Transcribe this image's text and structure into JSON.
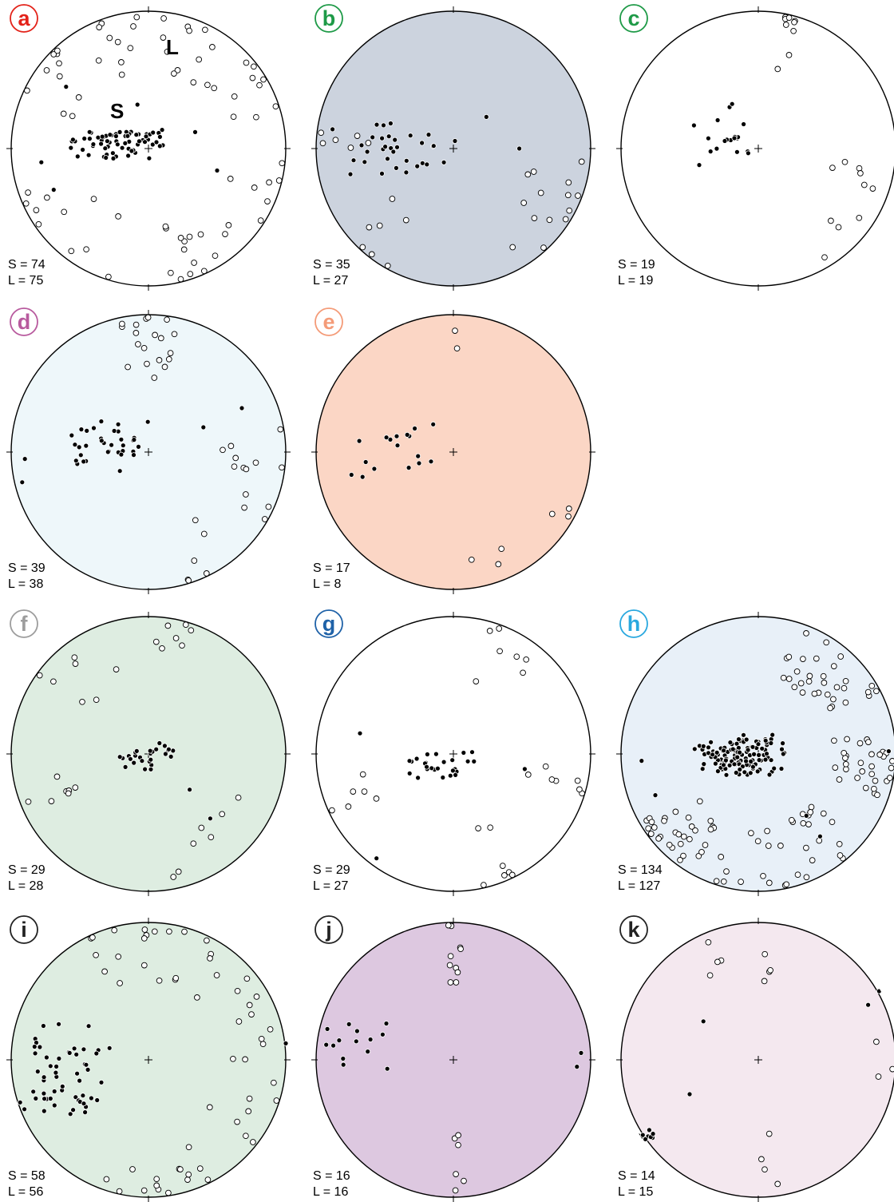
{
  "figure": {
    "panels": [
      {
        "id": "a",
        "label": "a",
        "label_color": "#e32219",
        "fill": "#ffffff",
        "count_S": "S = 74",
        "count_L": "L = 75",
        "annot_S": "S",
        "annot_L": "L",
        "poles_S_count": 74,
        "lineations_L_count": 75,
        "S_cluster": {
          "center": [
            -0.24,
            -0.02
          ],
          "spread": [
            0.4,
            0.14
          ],
          "tail": [
            [
              -0.78,
              0.1
            ],
            [
              -0.69,
              0.3
            ],
            [
              -0.6,
              -0.45
            ],
            [
              -0.08,
              -0.32
            ],
            [
              0.5,
              0.16
            ],
            [
              0.34,
              -0.12
            ]
          ]
        },
        "L_arcs": [
          [
            5,
            35
          ],
          [
            40,
            75
          ],
          [
            95,
            150
          ],
          [
            155,
            175
          ],
          [
            195,
            250
          ],
          [
            290,
            320
          ],
          [
            330,
            355
          ]
        ]
      },
      {
        "id": "b",
        "label": "b",
        "label_color": "#1e9a47",
        "fill": "#ccd3de",
        "count_S": "S = 35",
        "count_L": "L = 27",
        "poles_S_count": 35,
        "lineations_L_count": 27,
        "S_cluster": {
          "center": [
            -0.34,
            0.04
          ],
          "spread": [
            0.45,
            0.3
          ],
          "tail": [
            [
              -0.88,
              -0.14
            ],
            [
              0.24,
              -0.23
            ],
            [
              0.48,
              0.0
            ]
          ]
        },
        "L_arcs": [
          [
            95,
            150
          ],
          [
            105,
            130
          ],
          [
            200,
            240
          ],
          [
            270,
            280
          ]
        ]
      },
      {
        "id": "c",
        "label": "c",
        "label_color": "#1e9a47",
        "fill": "#ffffff",
        "count_S": "S = 19",
        "count_L": "L = 19",
        "poles_S_count": 19,
        "lineations_L_count": 19,
        "S_cluster": {
          "center": [
            -0.25,
            -0.12
          ],
          "spread": [
            0.25,
            0.28
          ],
          "tail": [
            [
              -0.43,
              0.12
            ]
          ]
        },
        "L_arcs": [
          [
            95,
            150
          ],
          [
            10,
            20
          ]
        ]
      },
      {
        "id": "d",
        "label": "d",
        "label_color": "#b85a9e",
        "fill": "#eef7fa",
        "count_S": "S = 39",
        "count_L": "L = 38",
        "poles_S_count": 39,
        "lineations_L_count": 38,
        "S_cluster": {
          "center": [
            -0.35,
            -0.05
          ],
          "spread": [
            0.42,
            0.25
          ],
          "tail": [
            [
              -0.9,
              0.05
            ],
            [
              -0.92,
              0.22
            ],
            [
              0.4,
              -0.18
            ],
            [
              0.68,
              -0.32
            ]
          ]
        },
        "L_arcs": [
          [
            110,
            165
          ],
          [
            345,
            360
          ],
          [
            0,
            15
          ],
          [
            80,
            100
          ]
        ]
      },
      {
        "id": "e",
        "label": "e",
        "label_color": "#f49b78",
        "fill": "#fbd6c5",
        "count_S": "S = 17",
        "count_L": "L = 8",
        "poles_S_count": 17,
        "lineations_L_count": 8,
        "S_cluster": {
          "center": [
            -0.4,
            -0.05
          ],
          "spread": [
            0.4,
            0.28
          ],
          "tail": []
        },
        "L_arcs": [
          [
            100,
            125
          ],
          [
            150,
            175
          ],
          [
            0,
            3
          ]
        ]
      },
      {
        "id": "f",
        "label": "f",
        "label_color": "#9d9d9d",
        "fill": "#deede1",
        "count_S": "S = 29",
        "count_L": "L = 28",
        "poles_S_count": 29,
        "lineations_L_count": 28,
        "S_cluster": {
          "center": [
            0.0,
            0.02
          ],
          "spread": [
            0.25,
            0.12
          ],
          "tail": [
            [
              0.3,
              0.26
            ],
            [
              0.45,
              0.47
            ]
          ]
        },
        "L_arcs": [
          [
            110,
            175
          ],
          [
            300,
            340
          ],
          [
            0,
            20
          ],
          [
            240,
            260
          ]
        ]
      },
      {
        "id": "g",
        "label": "g",
        "label_color": "#1f62a8",
        "fill": "#ffffff",
        "count_S": "S = 29",
        "count_L": "L = 27",
        "poles_S_count": 29,
        "lineations_L_count": 27,
        "S_cluster": {
          "center": [
            -0.1,
            0.08
          ],
          "spread": [
            0.28,
            0.12
          ],
          "tail": [
            [
              -0.68,
              -0.15
            ],
            [
              0.52,
              0.11
            ],
            [
              -0.56,
              0.76
            ]
          ]
        },
        "L_arcs": [
          [
            5,
            45
          ],
          [
            95,
            110
          ],
          [
            150,
            170
          ],
          [
            230,
            260
          ]
        ]
      },
      {
        "id": "h",
        "label": "h",
        "label_color": "#29a8df",
        "fill": "#e8f0f8",
        "count_S": "S = 134",
        "count_L": "L = 127",
        "poles_S_count": 134,
        "lineations_L_count": 127,
        "S_cluster": {
          "center": [
            -0.12,
            0.02
          ],
          "spread": [
            0.38,
            0.18
          ],
          "tail": [
            [
              -0.75,
              0.3
            ],
            [
              -0.85,
              0.05
            ],
            [
              0.35,
              0.45
            ],
            [
              0.45,
              0.6
            ],
            [
              0.95,
              -0.02
            ]
          ]
        },
        "L_arcs": [
          [
            15,
            65
          ],
          [
            130,
            200
          ],
          [
            210,
            240
          ],
          [
            80,
            110
          ]
        ]
      },
      {
        "id": "i",
        "label": "i",
        "label_color": "#222222",
        "fill": "#deede1",
        "count_S": "S = 58",
        "count_L": "L = 56",
        "poles_S_count": 58,
        "lineations_L_count": 56,
        "S_cluster": {
          "center": [
            -0.6,
            0.08
          ],
          "spread": [
            0.35,
            0.4
          ],
          "tail": [
            [
              1.0,
              -0.12
            ]
          ]
        },
        "L_arcs": [
          [
            160,
            200
          ],
          [
            330,
            360
          ],
          [
            0,
            40
          ],
          [
            100,
            160
          ],
          [
            50,
            90
          ]
        ]
      },
      {
        "id": "j",
        "label": "j",
        "label_color": "#222222",
        "fill": "#ddc8e0",
        "count_S": "S = 16",
        "count_L": "L = 16",
        "poles_S_count": 16,
        "lineations_L_count": 16,
        "S_cluster": {
          "center": [
            -0.7,
            -0.1
          ],
          "spread": [
            0.3,
            0.25
          ],
          "tail": [
            [
              0.9,
              0.05
            ],
            [
              0.93,
              -0.05
            ]
          ]
        },
        "L_arcs": [
          [
            175,
            180
          ],
          [
            0,
            5
          ],
          [
            355,
            360
          ]
        ]
      },
      {
        "id": "k",
        "label": "k",
        "label_color": "#222222",
        "fill": "#f4e8ef",
        "count_S": "S = 14",
        "count_L": "L = 15",
        "poles_S_count": 14,
        "lineations_L_count": 15,
        "S_cluster": {
          "center": [
            -0.8,
            0.55
          ],
          "spread": [
            0.1,
            0.05
          ],
          "tail": [
            [
              0.8,
              -0.4
            ],
            [
              0.88,
              -0.5
            ],
            [
              -0.4,
              -0.28
            ],
            [
              -0.5,
              0.25
            ]
          ]
        },
        "L_arcs": [
          [
            170,
            180
          ],
          [
            0,
            10
          ],
          [
            330,
            340
          ],
          [
            80,
            110
          ]
        ]
      }
    ]
  }
}
